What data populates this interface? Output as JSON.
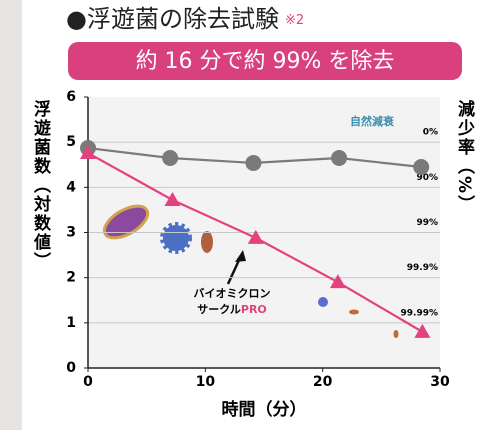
{
  "chart_data": {
    "type": "line",
    "title": "●浮遊菌の除去試験",
    "title_note": "※2",
    "subtitle": "約 16 分で約 99% を除去",
    "y_label": "浮遊菌数（対数値）",
    "y2_label": "減少率（%）",
    "x_label": "時間（分）",
    "xlim": [
      0,
      30
    ],
    "xticks": [
      0,
      10,
      20,
      30
    ],
    "ylim": [
      0,
      6
    ],
    "yticks": [
      0,
      1,
      2,
      3,
      4,
      5,
      6
    ],
    "y2lim": [
      0,
      6
    ],
    "y2ticks": [
      {
        "value": 5,
        "label": "0%"
      },
      {
        "value": 4,
        "label": "90%"
      },
      {
        "value": 3,
        "label": "99%"
      },
      {
        "value": 2,
        "label": "99.9%"
      },
      {
        "value": 1,
        "label": "99.99%"
      }
    ],
    "grid": true,
    "series": [
      {
        "name": "自然減衰",
        "color": "#7a7a7a",
        "marker": "circle",
        "x": [
          0,
          7,
          14.1,
          21.4,
          28.4
        ],
        "values": [
          4.87,
          4.65,
          4.54,
          4.65,
          4.45
        ]
      },
      {
        "color": "#e4417f",
        "marker": "triangle",
        "x": [
          0,
          7.2,
          14.3,
          21.3,
          28.5
        ],
        "values": [
          4.76,
          3.72,
          2.88,
          1.9,
          0.8
        ]
      }
    ],
    "annotation": {
      "line1": "バイオミクロン",
      "line2": "サークル",
      "line2_suffix": "PRO"
    }
  }
}
